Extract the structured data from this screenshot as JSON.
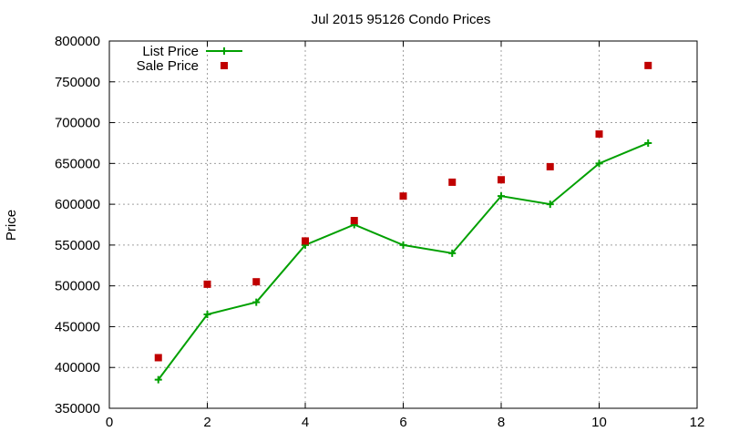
{
  "chart_data": {
    "type": "line",
    "title": "Jul 2015 95126 Condo Prices",
    "xlabel": "",
    "ylabel": "Price",
    "xlim": [
      0,
      12
    ],
    "ylim": [
      350000,
      800000
    ],
    "x_ticks": [
      0,
      2,
      4,
      6,
      8,
      10,
      12
    ],
    "y_ticks": [
      350000,
      400000,
      450000,
      500000,
      550000,
      600000,
      650000,
      700000,
      750000,
      800000
    ],
    "grid": true,
    "legend_position": "top-left",
    "series": [
      {
        "name": "List Price",
        "style": "line-with-plus-markers",
        "color": "#00a000",
        "points": [
          [
            1,
            385000
          ],
          [
            2,
            465000
          ],
          [
            3,
            480000
          ],
          [
            4,
            550000
          ],
          [
            5,
            575000
          ],
          [
            6,
            550000
          ],
          [
            7,
            540000
          ],
          [
            8,
            610000
          ],
          [
            9,
            600000
          ],
          [
            10,
            650000
          ],
          [
            11,
            675000
          ]
        ]
      },
      {
        "name": "Sale Price",
        "style": "square-markers",
        "color": "#c00000",
        "points": [
          [
            1,
            412000
          ],
          [
            2,
            502000
          ],
          [
            3,
            505000
          ],
          [
            4,
            555000
          ],
          [
            5,
            580000
          ],
          [
            6,
            610000
          ],
          [
            7,
            627000
          ],
          [
            8,
            630000
          ],
          [
            9,
            646000
          ],
          [
            10,
            686000
          ],
          [
            11,
            770000
          ]
        ]
      }
    ]
  }
}
